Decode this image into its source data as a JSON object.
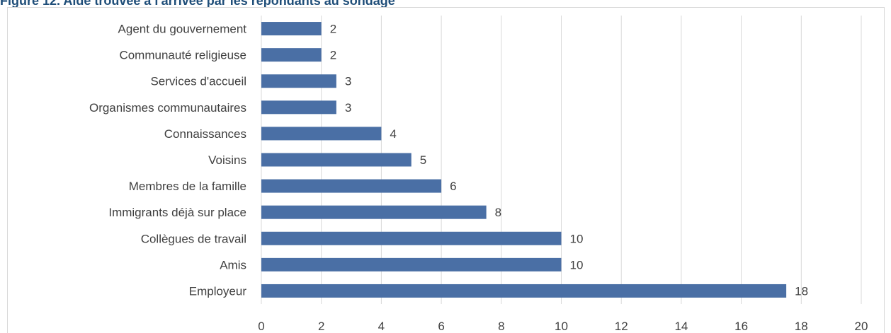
{
  "title": "Figure 12. Aide trouvée à l'arrivée par les répondants au sondage",
  "colors": {
    "title": "#1f4e79",
    "bar": "#4a6fa5",
    "grid": "#d9d9d9",
    "text": "#404040"
  },
  "chart_data": {
    "type": "bar",
    "orientation": "horizontal",
    "categories": [
      "Agent du gouvernement",
      "Communauté religieuse",
      "Services d'accueil",
      "Organismes communautaires",
      "Connaissances",
      "Voisins",
      "Membres de la famille",
      "Immigrants déjà sur place",
      "Collègues de travail",
      "Amis",
      "Employeur"
    ],
    "values": [
      2,
      2,
      2.5,
      2.5,
      4,
      5,
      6,
      7.5,
      10,
      10,
      17.5
    ],
    "value_labels": [
      "2",
      "2",
      "3",
      "3",
      "4",
      "5",
      "6",
      "8",
      "10",
      "10",
      "18"
    ],
    "xlim": [
      0,
      20
    ],
    "x_ticks": [
      "0",
      "2",
      "4",
      "6",
      "8",
      "10",
      "12",
      "14",
      "16",
      "18",
      "20"
    ],
    "grid": true
  }
}
